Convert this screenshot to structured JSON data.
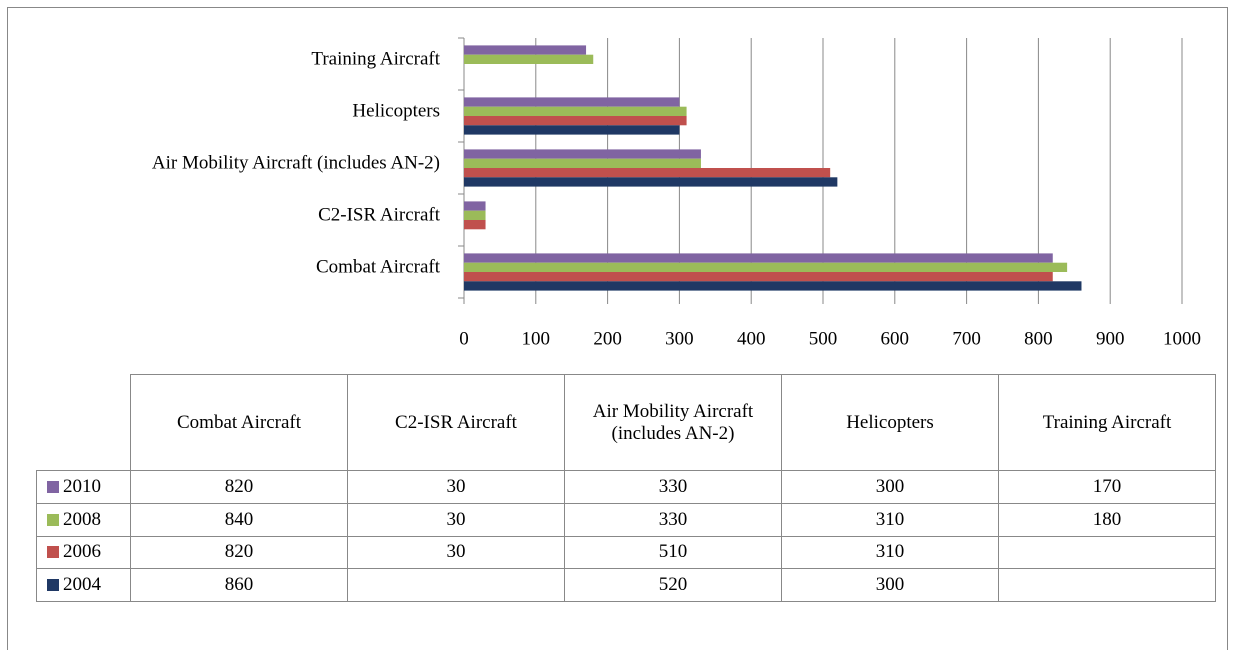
{
  "chart_data": {
    "type": "bar",
    "orientation": "horizontal",
    "categories": [
      "Combat Aircraft",
      "C2-ISR Aircraft",
      "Air Mobility Aircraft (includes AN-2)",
      "Helicopters",
      "Training Aircraft"
    ],
    "series": [
      {
        "name": "2010",
        "color": "#8064a2",
        "values": [
          820,
          30,
          330,
          300,
          170
        ]
      },
      {
        "name": "2008",
        "color": "#9bbb59",
        "values": [
          840,
          30,
          330,
          310,
          180
        ]
      },
      {
        "name": "2006",
        "color": "#c0504d",
        "values": [
          820,
          30,
          510,
          310,
          null
        ]
      },
      {
        "name": "2004",
        "color": "#1f3864",
        "values": [
          860,
          null,
          520,
          300,
          null
        ]
      }
    ],
    "xlim": [
      0,
      1000
    ],
    "xticks": [
      0,
      100,
      200,
      300,
      400,
      500,
      600,
      700,
      800,
      900,
      1000
    ],
    "grid": true,
    "data_table": true
  }
}
